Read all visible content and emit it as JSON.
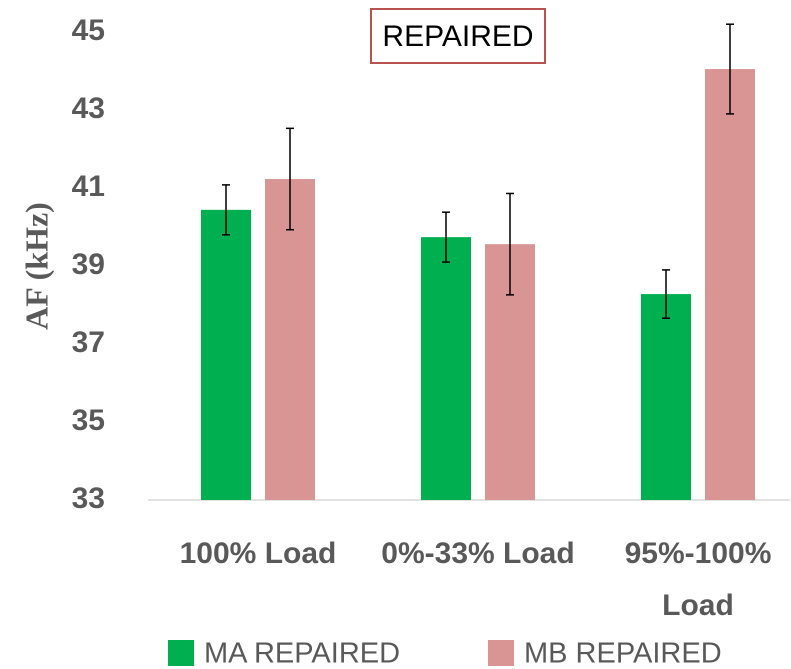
{
  "chart_data": {
    "type": "bar",
    "title": "REPAIRED",
    "y_label": "AF (kHz)",
    "categories": [
      "100% Load",
      "0%-33% Load",
      "95%-100% Load"
    ],
    "series": [
      {
        "name": "MA REPAIRED",
        "color": "#00b050",
        "values": [
          40.44,
          39.74,
          38.28
        ],
        "errors": [
          0.64,
          0.64,
          0.62
        ]
      },
      {
        "name": "MB REPAIRED",
        "color": "#d99594",
        "values": [
          41.23,
          39.56,
          44.05
        ],
        "errors": [
          1.3,
          1.3,
          1.15
        ]
      }
    ],
    "ylim": [
      33,
      45
    ],
    "yticks": [
      33,
      35,
      37,
      39,
      41,
      43,
      45
    ],
    "grid": false,
    "legend": "bottom"
  }
}
